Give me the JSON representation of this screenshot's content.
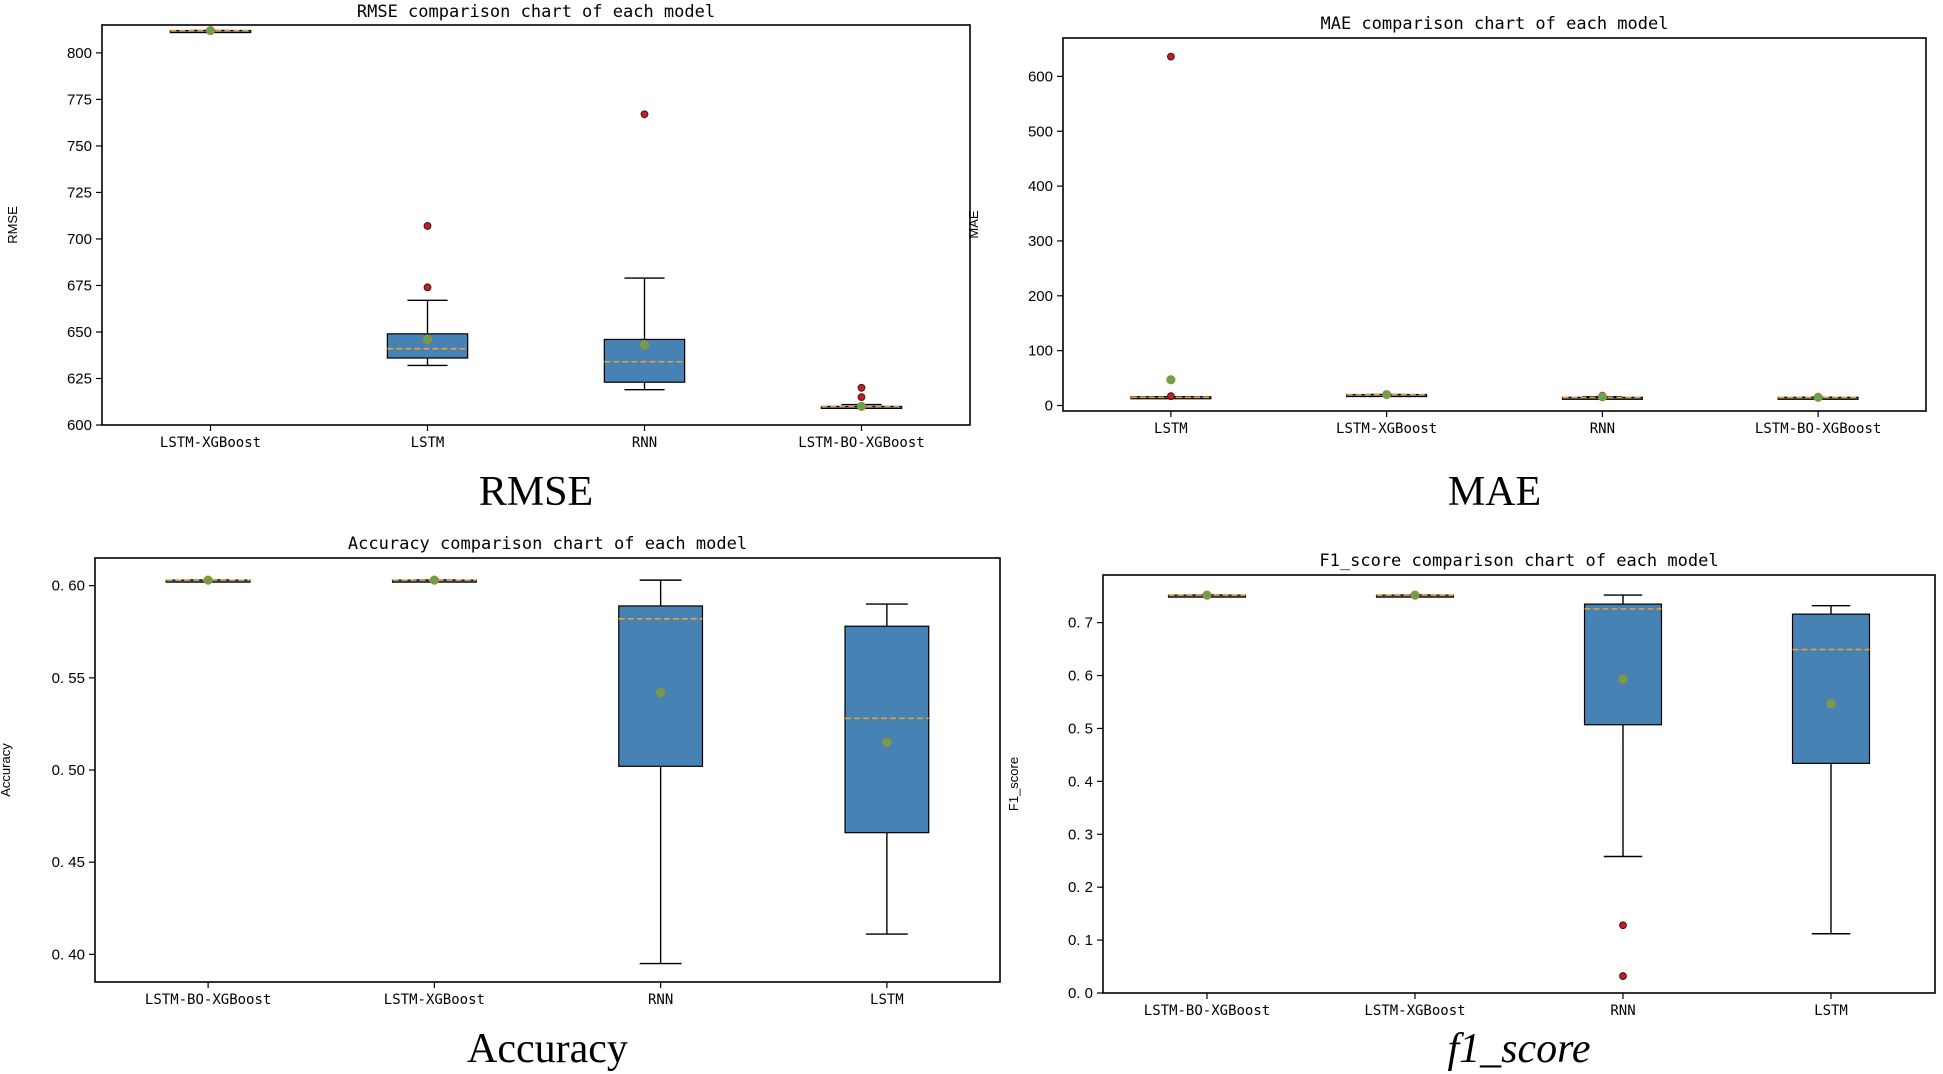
{
  "chart_data": [
    {
      "type": "box",
      "title": "RMSE comparison chart of each model",
      "ylabel": "RMSE",
      "caption": "RMSE",
      "ylim": [
        600,
        815
      ],
      "yticks": [
        600,
        625,
        650,
        675,
        700,
        725,
        750,
        775,
        800
      ],
      "yticklabels": [
        "600",
        "625",
        "650",
        "675",
        "700",
        "725",
        "750",
        "775",
        "800"
      ],
      "categories": [
        "LSTM-XGBoost",
        "LSTM",
        "RNN",
        "LSTM-BO-XGBoost"
      ],
      "boxes": [
        {
          "name": "LSTM-XGBoost",
          "whislo": 812,
          "q1": 812,
          "med": 812,
          "q3": 812,
          "whishi": 812,
          "mean": 812,
          "fliers": []
        },
        {
          "name": "LSTM",
          "whislo": 632,
          "q1": 636,
          "med": 641,
          "q3": 649,
          "whishi": 667,
          "mean": 646,
          "fliers": [
            674,
            707
          ]
        },
        {
          "name": "RNN",
          "whislo": 619,
          "q1": 623,
          "med": 634,
          "q3": 646,
          "whishi": 679,
          "mean": 643,
          "fliers": [
            767
          ]
        },
        {
          "name": "LSTM-BO-XGBoost",
          "whislo": 609,
          "q1": 609,
          "med": 610,
          "q3": 610,
          "whishi": 611,
          "mean": 610,
          "fliers": [
            615,
            620
          ]
        }
      ]
    },
    {
      "type": "box",
      "title": "MAE comparison chart of each model",
      "ylabel": "MAE",
      "caption": "MAE",
      "ylim": [
        -10,
        670
      ],
      "yticks": [
        0,
        100,
        200,
        300,
        400,
        500,
        600
      ],
      "yticklabels": [
        "0",
        "100",
        "200",
        "300",
        "400",
        "500",
        "600"
      ],
      "categories": [
        "LSTM",
        "LSTM-XGBoost",
        "RNN",
        "LSTM-BO-XGBoost"
      ],
      "boxes": [
        {
          "name": "LSTM",
          "whislo": 15,
          "q1": 15,
          "med": 15,
          "q3": 16,
          "whishi": 16,
          "mean": 47,
          "fliers": [
            17,
            636
          ]
        },
        {
          "name": "LSTM-XGBoost",
          "whislo": 20,
          "q1": 20,
          "med": 20,
          "q3": 20,
          "whishi": 20,
          "mean": 20,
          "fliers": []
        },
        {
          "name": "RNN",
          "whislo": 14,
          "q1": 14,
          "med": 15,
          "q3": 15,
          "whishi": 16,
          "mean": 16,
          "fliers": [
            18
          ]
        },
        {
          "name": "LSTM-BO-XGBoost",
          "whislo": 15,
          "q1": 15,
          "med": 15,
          "q3": 15,
          "whishi": 15,
          "mean": 15,
          "fliers": []
        }
      ]
    },
    {
      "type": "box",
      "title": "Accuracy comparison chart of each model",
      "ylabel": "Accuracy",
      "caption": "Accuracy",
      "ylim": [
        0.385,
        0.615
      ],
      "yticks": [
        0.4,
        0.45,
        0.5,
        0.55,
        0.6
      ],
      "yticklabels": [
        "0. 40",
        "0. 45",
        "0. 50",
        "0. 55",
        "0. 60"
      ],
      "categories": [
        "LSTM-BO-XGBoost",
        "LSTM-XGBoost",
        "RNN",
        "LSTM"
      ],
      "boxes": [
        {
          "name": "LSTM-BO-XGBoost",
          "whislo": 0.603,
          "q1": 0.603,
          "med": 0.603,
          "q3": 0.603,
          "whishi": 0.603,
          "mean": 0.603,
          "fliers": []
        },
        {
          "name": "LSTM-XGBoost",
          "whislo": 0.603,
          "q1": 0.603,
          "med": 0.603,
          "q3": 0.603,
          "whishi": 0.603,
          "mean": 0.603,
          "fliers": []
        },
        {
          "name": "RNN",
          "whislo": 0.395,
          "q1": 0.502,
          "med": 0.582,
          "q3": 0.589,
          "whishi": 0.603,
          "mean": 0.542,
          "fliers": []
        },
        {
          "name": "LSTM",
          "whislo": 0.411,
          "q1": 0.466,
          "med": 0.528,
          "q3": 0.578,
          "whishi": 0.59,
          "mean": 0.515,
          "fliers": []
        }
      ]
    },
    {
      "type": "box",
      "title": "F1_score comparison chart of each model",
      "ylabel": "F1_score",
      "caption": "f1_score",
      "ylim": [
        0.0,
        0.79
      ],
      "yticks": [
        0.0,
        0.1,
        0.2,
        0.3,
        0.4,
        0.5,
        0.6,
        0.7
      ],
      "yticklabels": [
        "0. 0",
        "0. 1",
        "0. 2",
        "0. 3",
        "0. 4",
        "0. 5",
        "0. 6",
        "0. 7"
      ],
      "categories": [
        "LSTM-BO-XGBoost",
        "LSTM-XGBoost",
        "RNN",
        "LSTM"
      ],
      "boxes": [
        {
          "name": "LSTM-BO-XGBoost",
          "whislo": 0.752,
          "q1": 0.752,
          "med": 0.752,
          "q3": 0.752,
          "whishi": 0.752,
          "mean": 0.752,
          "fliers": []
        },
        {
          "name": "LSTM-XGBoost",
          "whislo": 0.752,
          "q1": 0.752,
          "med": 0.752,
          "q3": 0.752,
          "whishi": 0.752,
          "mean": 0.752,
          "fliers": []
        },
        {
          "name": "RNN",
          "whislo": 0.258,
          "q1": 0.507,
          "med": 0.726,
          "q3": 0.735,
          "whishi": 0.752,
          "mean": 0.593,
          "fliers": [
            0.128,
            0.032
          ]
        },
        {
          "name": "LSTM",
          "whislo": 0.112,
          "q1": 0.434,
          "med": 0.649,
          "q3": 0.716,
          "whishi": 0.732,
          "mean": 0.547,
          "fliers": []
        }
      ]
    }
  ]
}
